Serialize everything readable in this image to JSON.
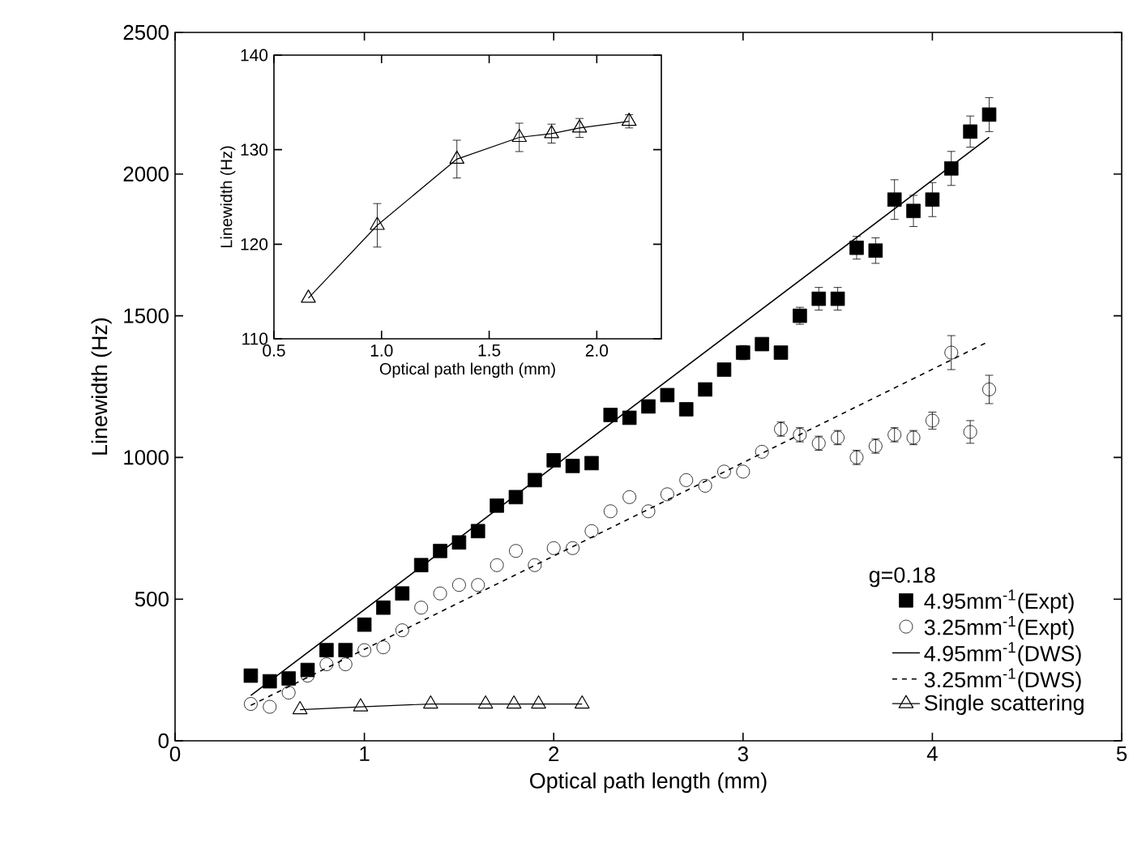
{
  "chart_data": [
    {
      "type": "scatter",
      "xlabel": "Optical path length (mm)",
      "ylabel": "Linewidth (Hz)",
      "legend_title": "g=0.18",
      "legend": "bottom right",
      "xlim": [
        0,
        5
      ],
      "ylim": [
        0,
        2500
      ],
      "xticks": [
        0,
        1,
        2,
        3,
        4,
        5
      ],
      "yticks": [
        0,
        500,
        1000,
        1500,
        2000,
        2500
      ],
      "series": [
        {
          "name": "4.95mm$^{-1}$(Expt)",
          "type": "scatter",
          "marker": "square",
          "color": "#000000",
          "x": [
            0.4,
            0.5,
            0.6,
            0.7,
            0.8,
            0.9,
            1.0,
            1.1,
            1.2,
            1.3,
            1.4,
            1.5,
            1.6,
            1.7,
            1.8,
            1.9,
            2.0,
            2.1,
            2.2,
            2.3,
            2.4,
            2.5,
            2.6,
            2.7,
            2.8,
            2.9,
            3.0,
            3.1,
            3.2,
            3.3,
            3.4,
            3.5,
            3.6,
            3.7,
            3.8,
            3.9,
            4.0,
            4.1,
            4.2,
            4.3
          ],
          "values": [
            230,
            210,
            220,
            250,
            320,
            320,
            410,
            470,
            520,
            620,
            670,
            700,
            740,
            830,
            860,
            920,
            990,
            970,
            980,
            1150,
            1140,
            1180,
            1220,
            1170,
            1240,
            1310,
            1370,
            1400,
            1370,
            1500,
            1560,
            1560,
            1740,
            1730,
            1910,
            1870,
            1910,
            2020,
            2150,
            2210
          ],
          "errors": [
            null,
            null,
            null,
            null,
            null,
            null,
            null,
            null,
            null,
            null,
            null,
            null,
            null,
            null,
            null,
            null,
            null,
            null,
            null,
            null,
            null,
            null,
            null,
            null,
            null,
            20,
            25,
            20,
            20,
            30,
            40,
            40,
            40,
            45,
            70,
            55,
            60,
            60,
            55,
            60
          ]
        },
        {
          "name": "3.25mm$^{-1}$(Expt)",
          "type": "scatter",
          "marker": "circle",
          "color": "#000000",
          "x": [
            0.4,
            0.5,
            0.6,
            0.7,
            0.8,
            0.9,
            1.0,
            1.1,
            1.2,
            1.3,
            1.4,
            1.5,
            1.6,
            1.7,
            1.8,
            1.9,
            2.0,
            2.1,
            2.2,
            2.3,
            2.4,
            2.5,
            2.6,
            2.7,
            2.8,
            2.9,
            3.0,
            3.1,
            3.2,
            3.3,
            3.4,
            3.5,
            3.6,
            3.7,
            3.8,
            3.9,
            4.0,
            4.1,
            4.2,
            4.3
          ],
          "values": [
            130,
            120,
            170,
            230,
            270,
            270,
            320,
            330,
            390,
            470,
            520,
            550,
            550,
            620,
            670,
            620,
            680,
            680,
            740,
            810,
            860,
            810,
            870,
            920,
            900,
            950,
            950,
            1020,
            1100,
            1080,
            1050,
            1070,
            1000,
            1040,
            1080,
            1070,
            1130,
            1370,
            1090,
            1240
          ],
          "errors": [
            null,
            null,
            null,
            null,
            null,
            null,
            null,
            null,
            null,
            null,
            null,
            null,
            null,
            null,
            null,
            null,
            null,
            null,
            null,
            null,
            null,
            null,
            null,
            null,
            null,
            null,
            null,
            null,
            25,
            25,
            25,
            25,
            25,
            25,
            25,
            25,
            30,
            60,
            40,
            50
          ]
        },
        {
          "name": "4.95mm$^{-1}$(DWS)",
          "type": "line",
          "line_style": "solid",
          "marker": "none",
          "color": "#000000",
          "x": [
            0.4,
            4.3
          ],
          "values": [
            160,
            2130
          ]
        },
        {
          "name": "3.25mm$^{-1}$(DWS)",
          "type": "line",
          "line_style": "dashed",
          "marker": "none",
          "color": "#000000",
          "x": [
            0.4,
            4.3
          ],
          "values": [
            125,
            1410
          ]
        },
        {
          "name": "Single scattering",
          "type": "line",
          "line_style": "solid",
          "marker": "triangle",
          "color": "#000000",
          "x": [
            0.66,
            0.98,
            1.35,
            1.64,
            1.79,
            1.92,
            2.15
          ],
          "values": [
            110,
            120,
            130,
            130,
            130,
            130,
            130
          ]
        }
      ]
    },
    {
      "type": "line",
      "xlabel": "Optical path length (mm)",
      "ylabel": "Linewidth (Hz)",
      "marker": "triangle",
      "xlim": [
        0.5,
        2.3
      ],
      "ylim": [
        110,
        140
      ],
      "xticks": [
        0.5,
        {
          "value": 1,
          "label": "1.0"
        },
        1.5,
        {
          "value": 2,
          "label": "2.0"
        }
      ],
      "yticks": [
        110,
        120,
        130,
        140
      ],
      "x": [
        0.66,
        0.98,
        1.35,
        1.64,
        1.79,
        1.92,
        2.15
      ],
      "values": [
        114.3,
        122,
        129,
        131.3,
        131.7,
        132.3,
        133
      ],
      "errors": [
        null,
        2.3,
        2,
        1.5,
        1,
        1,
        0.7
      ],
      "color": "#000000"
    }
  ]
}
